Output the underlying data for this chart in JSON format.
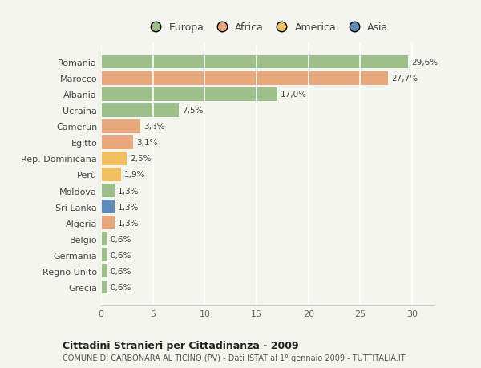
{
  "categories": [
    "Romania",
    "Marocco",
    "Albania",
    "Ucraina",
    "Camerun",
    "Egitto",
    "Rep. Dominicana",
    "Perù",
    "Moldova",
    "Sri Lanka",
    "Algeria",
    "Belgio",
    "Germania",
    "Regno Unito",
    "Grecia"
  ],
  "values": [
    29.6,
    27.7,
    17.0,
    7.5,
    3.8,
    3.1,
    2.5,
    1.9,
    1.3,
    1.3,
    1.3,
    0.6,
    0.6,
    0.6,
    0.6
  ],
  "labels": [
    "29,6%",
    "27,7%",
    "17,0%",
    "7,5%",
    "3,8%",
    "3,1%",
    "2,5%",
    "1,9%",
    "1,3%",
    "1,3%",
    "1,3%",
    "0,6%",
    "0,6%",
    "0,6%",
    "0,6%"
  ],
  "colors": [
    "#9dc08b",
    "#e8a87c",
    "#9dc08b",
    "#9dc08b",
    "#e8a87c",
    "#e8a87c",
    "#f0c060",
    "#f0c060",
    "#9dc08b",
    "#5b8db8",
    "#e8a87c",
    "#9dc08b",
    "#9dc08b",
    "#9dc08b",
    "#9dc08b"
  ],
  "legend_labels": [
    "Europa",
    "Africa",
    "America",
    "Asia"
  ],
  "legend_colors": [
    "#9dc08b",
    "#e8a87c",
    "#f0c060",
    "#5b8db8"
  ],
  "title": "Cittadini Stranieri per Cittadinanza - 2009",
  "subtitle": "COMUNE DI CARBONARA AL TICINO (PV) - Dati ISTAT al 1° gennaio 2009 - TUTTITALIA.IT",
  "xlim": [
    0,
    32
  ],
  "xticks": [
    0,
    5,
    10,
    15,
    20,
    25,
    30
  ],
  "background_color": "#f5f5f0",
  "grid_color": "#ffffff",
  "bar_height": 0.82
}
